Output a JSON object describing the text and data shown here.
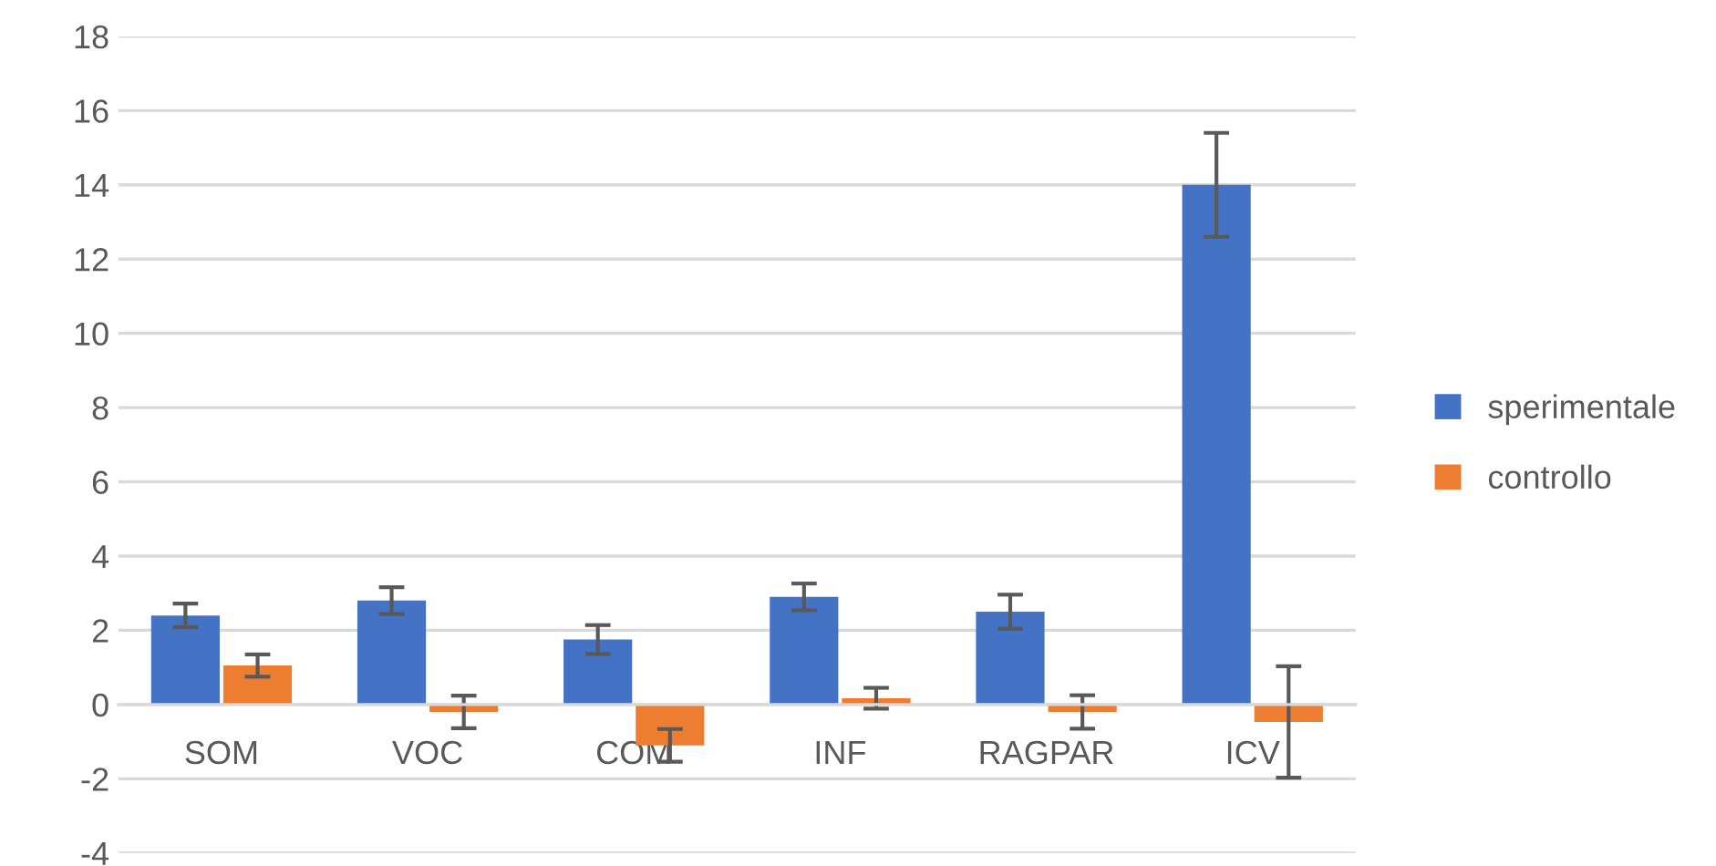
{
  "chart_data": {
    "type": "bar",
    "categories": [
      "SOM",
      "VOC",
      "COM",
      "INF",
      "RAGPAR",
      "ICV"
    ],
    "series": [
      {
        "name": "sperimentale",
        "color": "#4472c4",
        "values": [
          2.4,
          2.8,
          1.75,
          2.9,
          2.5,
          14.0
        ],
        "errors": [
          0.32,
          0.36,
          0.39,
          0.36,
          0.46,
          1.4
        ]
      },
      {
        "name": "controllo",
        "color": "#ed7d31",
        "values": [
          1.05,
          -0.2,
          -1.1,
          0.17,
          -0.2,
          -0.47
        ],
        "errors": [
          0.3,
          0.44,
          0.44,
          0.28,
          0.45,
          1.5
        ]
      }
    ],
    "ylim": [
      -4,
      18
    ],
    "yticks": [
      -4,
      -2,
      0,
      2,
      4,
      6,
      8,
      10,
      12,
      14,
      16,
      18
    ],
    "grid": "y",
    "legend": "right"
  }
}
